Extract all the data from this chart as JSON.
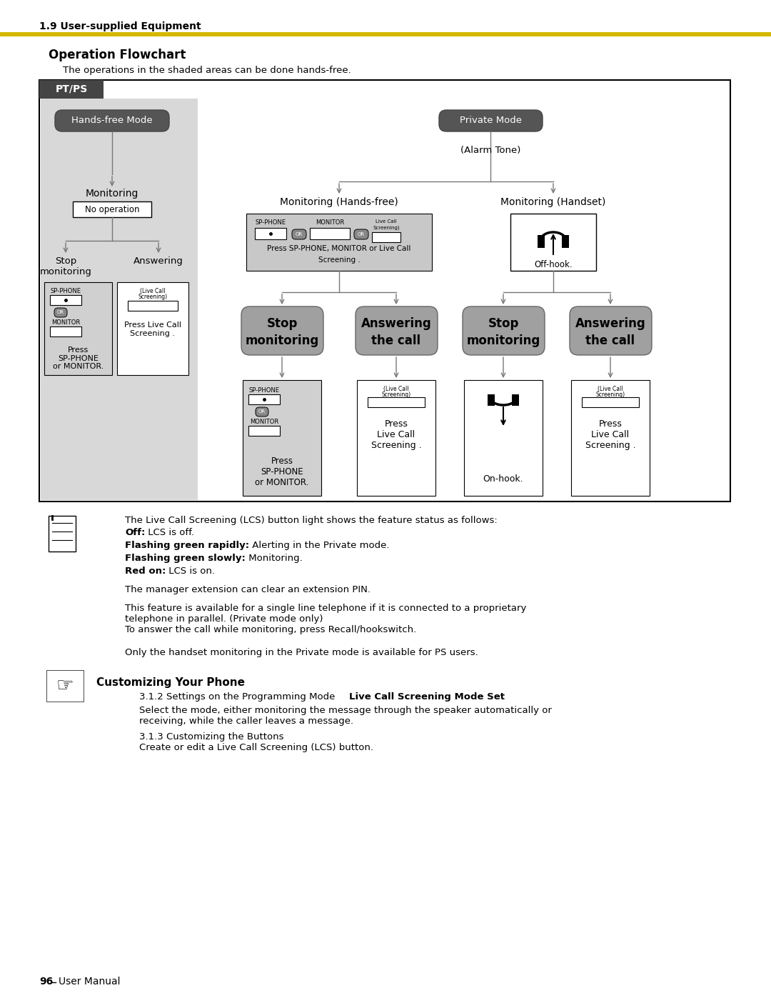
{
  "page_title": "1.9 User-supplied Equipment",
  "title_bar_color": "#D4B800",
  "section_title": "Operation Flowchart",
  "section_subtitle": "The operations in the shaded areas can be done hands-free.",
  "bg_color": "#ffffff",
  "page_num": "96",
  "page_label": "User Manual"
}
